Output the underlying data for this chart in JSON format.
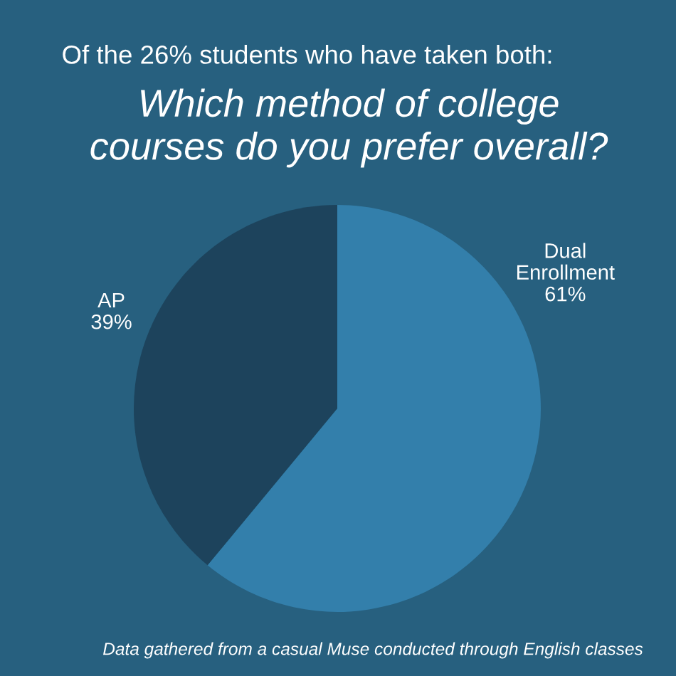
{
  "chart_data": {
    "type": "pie",
    "title": "Which method of college courses do you prefer overall?",
    "subtitle": "Of the 26% students who have taken both:",
    "categories": [
      "Dual Enrollment",
      "AP"
    ],
    "values": [
      61,
      39
    ],
    "value_labels": [
      "61%",
      "39%"
    ],
    "colors": [
      "#337fab",
      "#1d435c"
    ],
    "annotations": [
      "Data gathered from a casual Muse conducted through English classes"
    ]
  }
}
